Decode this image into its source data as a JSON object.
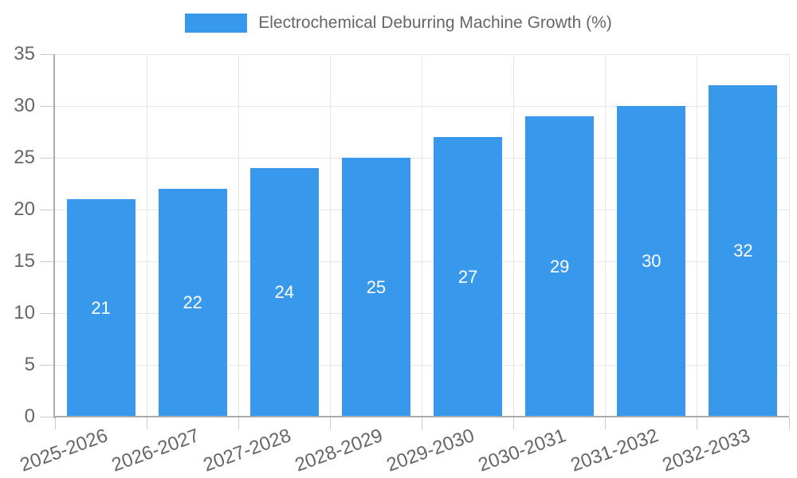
{
  "chart_data": {
    "type": "bar",
    "legend_label": "Electrochemical Deburring Machine Growth (%)",
    "legend_position": "top",
    "categories": [
      "2025-2026",
      "2026-2027",
      "2027-2028",
      "2028-2029",
      "2029-2030",
      "2030-2031",
      "2031-2032",
      "2032-2033"
    ],
    "values": [
      21,
      22,
      24,
      25,
      27,
      29,
      30,
      32
    ],
    "xlabel": "",
    "ylabel": "",
    "ylim": [
      0,
      35
    ],
    "yticks": [
      0,
      5,
      10,
      15,
      20,
      25,
      30,
      35
    ],
    "grid": true,
    "x_label_rotation_deg": -20,
    "colors": {
      "bar": "#3899ec",
      "value_text": "#ffffff",
      "axis_text": "#666666",
      "gridline": "#e6e6e6",
      "axis_line": "#ababab",
      "tick": "#cccccc"
    }
  }
}
